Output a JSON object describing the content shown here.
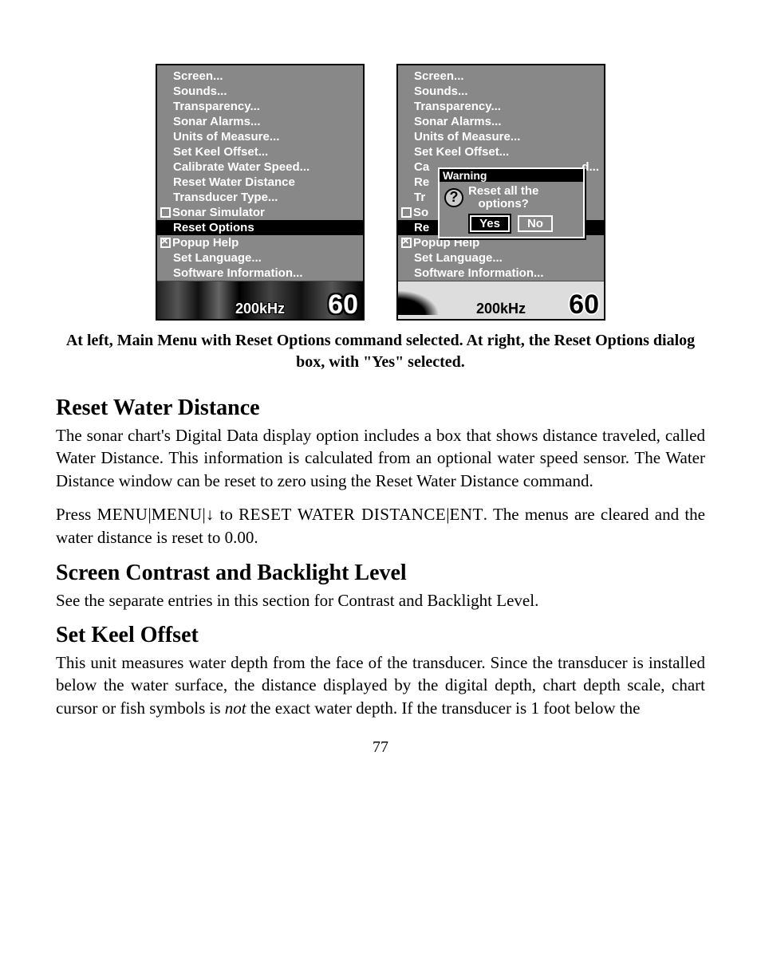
{
  "menu_items": [
    "Screen...",
    "Sounds...",
    "Transparency...",
    "Sonar Alarms...",
    "Units of Measure...",
    "Set Keel Offset...",
    "Calibrate Water Speed...",
    "Reset Water Distance",
    "Transducer Type..."
  ],
  "sonar_simulator_label": "Sonar Simulator",
  "reset_options_label": "Reset Options",
  "popup_help_label": "Popup Help",
  "set_language_label": "Set Language...",
  "software_info_label": "Software Information...",
  "freq_label": "200kHz",
  "depth_value": "60",
  "dialog": {
    "title": "Warning",
    "line1": "Reset all the",
    "line2": "options?",
    "yes": "Yes",
    "no": "No"
  },
  "right_menu_truncated": {
    "calibrate_prefix": "Ca",
    "reset_prefix": "Re",
    "transducer_prefix": "Tr",
    "sonar_prefix": "So",
    "reset_opt_prefix": "Re",
    "trailing": "d..."
  },
  "caption": "At left, Main Menu with Reset Options command selected. At right, the Reset Options dialog box, with \"Yes\" selected.",
  "sections": {
    "reset_water": {
      "heading": "Reset Water Distance",
      "p1": "The sonar chart's Digital Data display option includes a box that shows distance traveled, called Water Distance. This information is calculated from an optional water speed sensor. The Water Distance window can be reset to zero using the Reset Water Distance command.",
      "instr_prefix": "Press ",
      "instr_mid_to": " to ",
      "instr_end": ". The menus are cleared and the water distance is reset to 0.00.",
      "menu_token": "MENU",
      "menu2_token": "MENU",
      "arrow_token": "↓",
      "target_token": "RESET WATER DISTANCE",
      "enter_token": "ENT"
    },
    "contrast": {
      "heading": "Screen Contrast and Backlight Level",
      "p1": "See the separate entries in this section for Contrast and Backlight Level."
    },
    "keel": {
      "heading": "Set Keel Offset",
      "p1_a": "This unit measures water depth from the face of the transducer. Since the transducer is installed below the water surface, the distance displayed by the digital depth, chart depth scale, chart cursor or fish symbols is ",
      "p1_not": "not",
      "p1_b": " the exact water depth. If the transducer is 1 foot below the"
    }
  },
  "page_number": "77",
  "colors": {
    "screen_bg": "#888888",
    "text_white": "#ffffff",
    "text_black": "#000000"
  }
}
